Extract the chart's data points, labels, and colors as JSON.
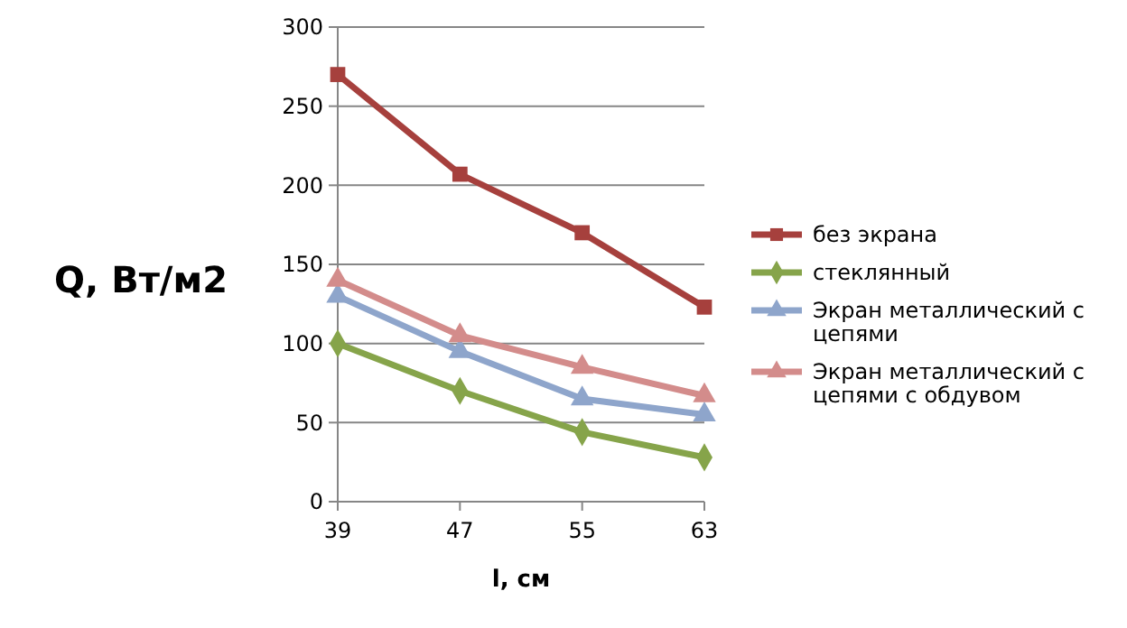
{
  "chart_data": {
    "type": "line",
    "xlabel": "l, см",
    "ylabel": "Q, Вт/м2",
    "x": [
      39,
      47,
      55,
      63
    ],
    "xlim": [
      39,
      63
    ],
    "xticks": [
      39,
      47,
      55,
      63
    ],
    "ylim": [
      0,
      300
    ],
    "yticks": [
      0,
      50,
      100,
      150,
      200,
      250,
      300
    ],
    "grid": "y",
    "legend": "right",
    "series": [
      {
        "name": "без экрана",
        "color": "#a6403d",
        "marker": "square",
        "values": [
          270,
          207,
          170,
          123
        ]
      },
      {
        "name": "стеклянный",
        "color": "#86a44a",
        "marker": "diamond",
        "values": [
          100,
          70,
          44,
          28
        ]
      },
      {
        "name": "Экран металлический с цепями",
        "color": "#8ea5cb",
        "marker": "triangle",
        "values": [
          130,
          95,
          65,
          55
        ]
      },
      {
        "name": "Экран металлический с цепями с обдувом",
        "color": "#d38c8b",
        "marker": "triangle",
        "values": [
          140,
          105,
          85,
          67
        ]
      }
    ]
  }
}
